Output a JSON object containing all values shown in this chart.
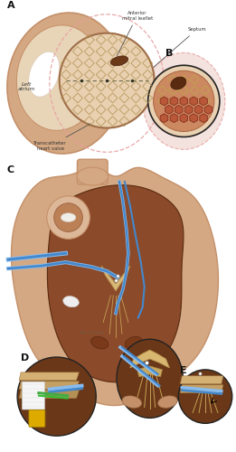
{
  "bg": "#ffffff",
  "colors": {
    "skin_light": "#D4A882",
    "skin_medium": "#C4906A",
    "skin_dark": "#A0704A",
    "heart_dark": "#8B4A2A",
    "heart_darkest": "#5A2A10",
    "inner_cavity": "#E8D0B0",
    "blue_catheter": "#4488CC",
    "blue_catheter_light": "#88BBEE",
    "green_catheter": "#44AA44",
    "label_color": "#333333",
    "pink_border": "#E8A0A0",
    "annotation_line": "#555555"
  },
  "labels": {
    "A": "A",
    "B": "B",
    "C": "C",
    "D": "D",
    "E": "E",
    "anterior_mitral_leaflet": "Anterior\nmitral leaflet",
    "septum": "Septum",
    "left_atrium": "Left\natrium",
    "transcatheter": "Transcatheter\nheart valve"
  }
}
